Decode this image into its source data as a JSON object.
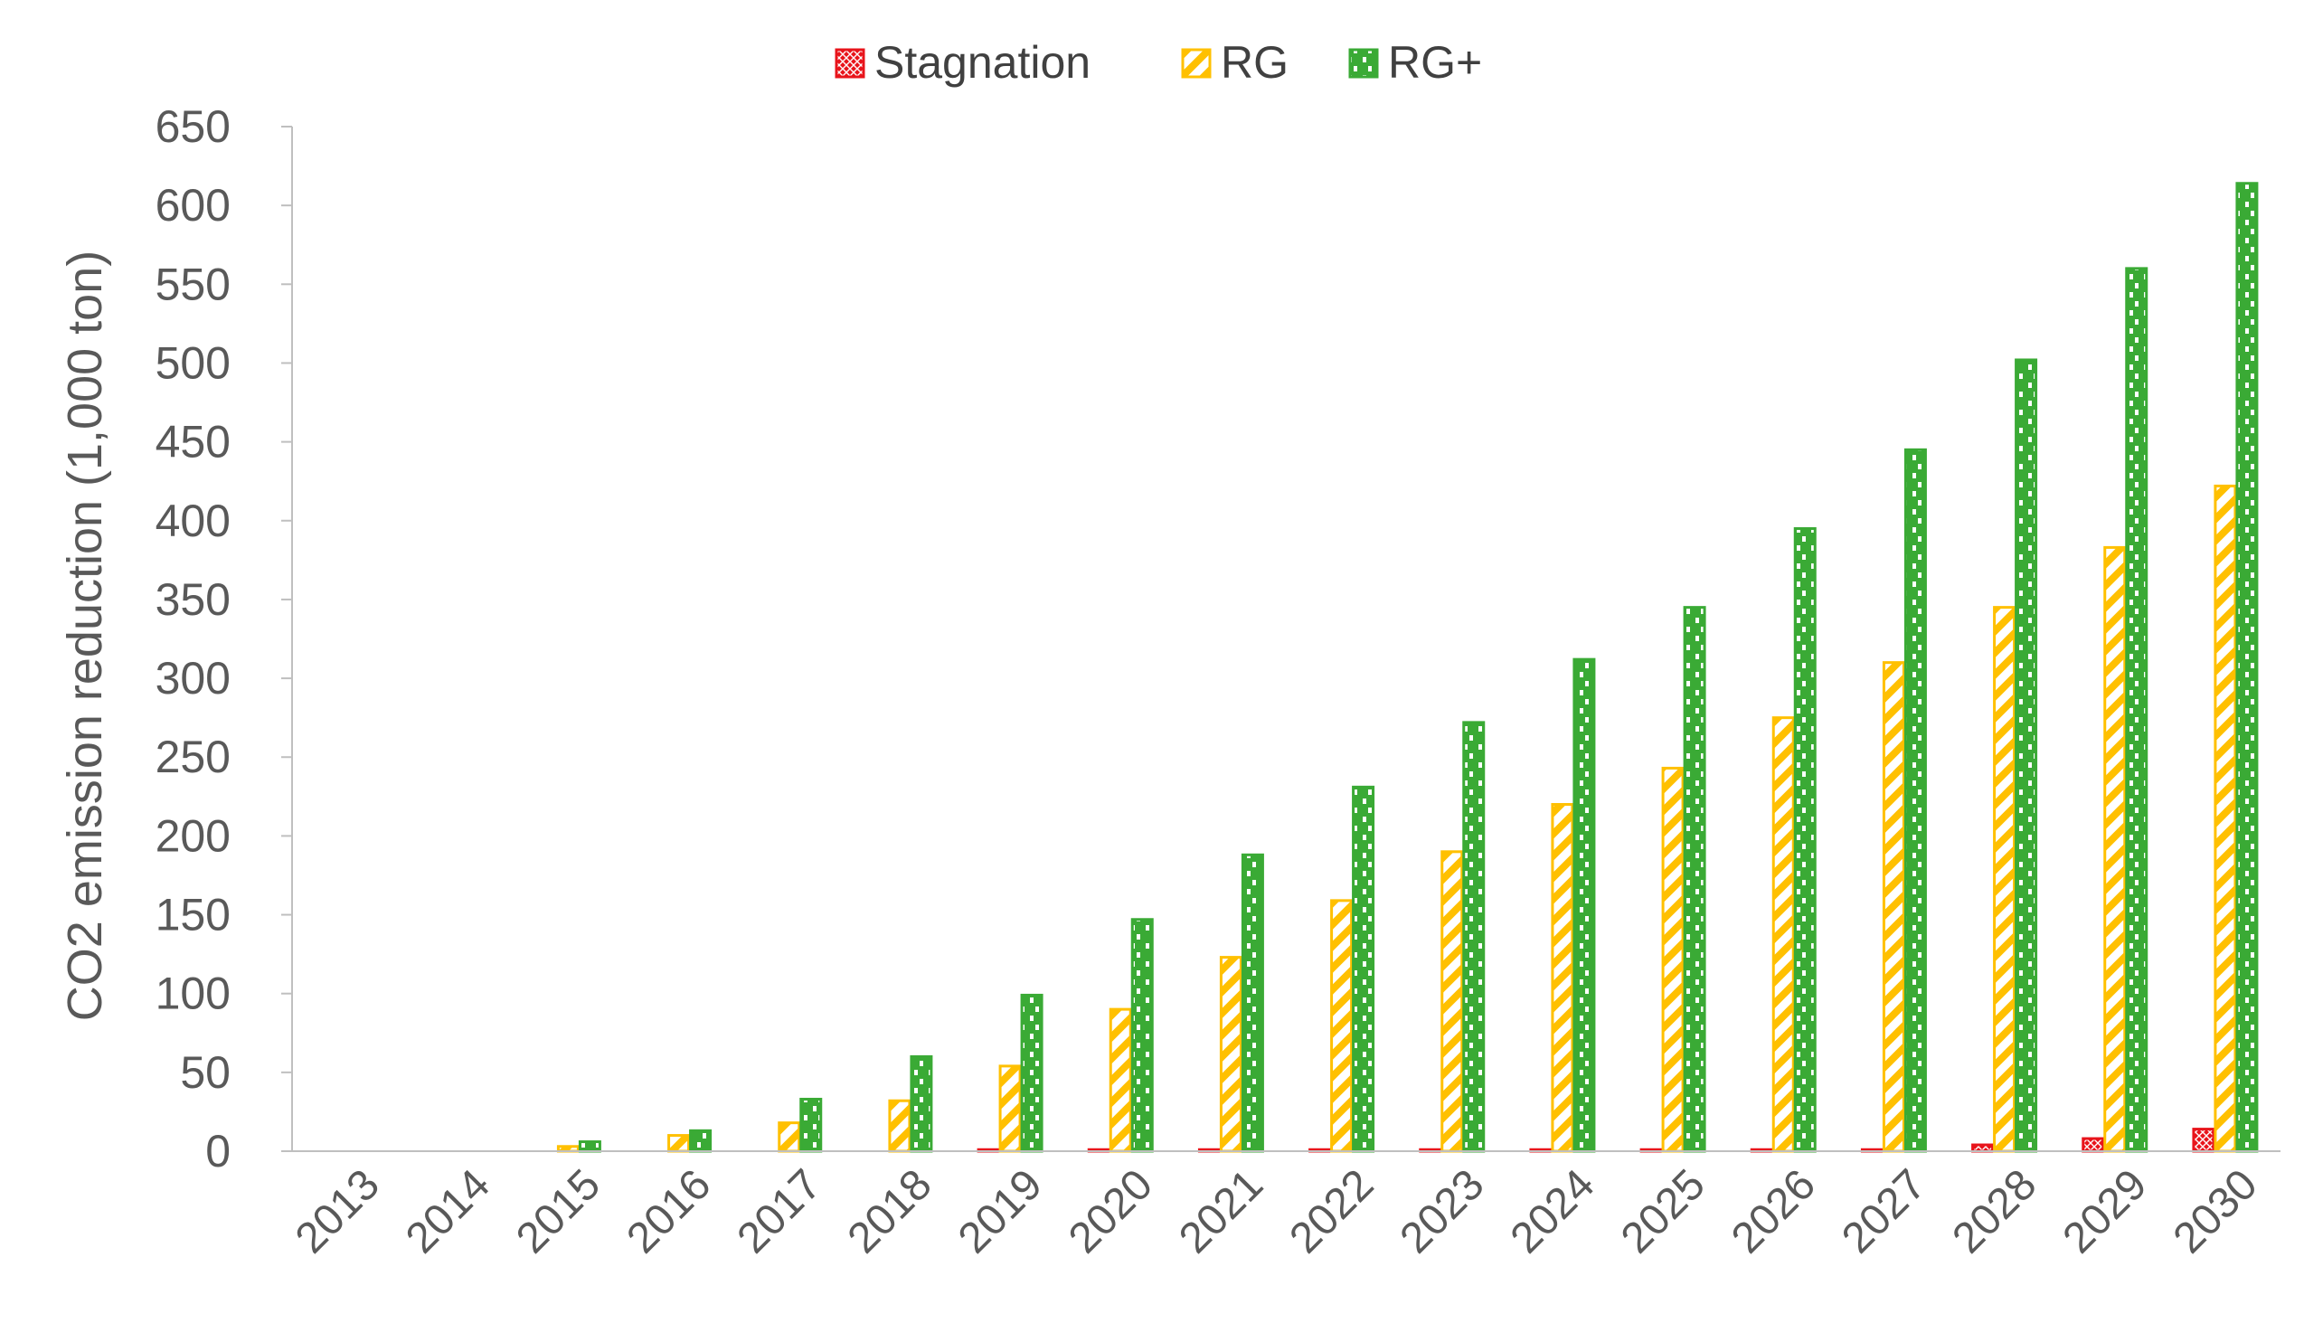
{
  "chart_data": {
    "type": "bar",
    "title": "",
    "xlabel": "",
    "ylabel": "CO2 emission reduction (1,000 ton)",
    "ylim": [
      0,
      650
    ],
    "yticks": [
      0,
      50,
      100,
      150,
      200,
      250,
      300,
      350,
      400,
      450,
      500,
      550,
      600,
      650
    ],
    "grid": false,
    "legend_position": "top",
    "categories": [
      "2013",
      "2014",
      "2015",
      "2016",
      "2017",
      "2018",
      "2019",
      "2020",
      "2021",
      "2022",
      "2023",
      "2024",
      "2025",
      "2026",
      "2027",
      "2028",
      "2029",
      "2030"
    ],
    "series": [
      {
        "name": "Stagnation",
        "color": "#e8141b",
        "pattern": "cross",
        "values": [
          0,
          0,
          0,
          0,
          0,
          0,
          1,
          1,
          1,
          1,
          1,
          1,
          1,
          1,
          1,
          4,
          8,
          14
        ]
      },
      {
        "name": "RG",
        "color": "#ffc000",
        "pattern": "diagonal",
        "values": [
          0,
          0,
          3,
          10,
          18,
          32,
          54,
          90,
          123,
          159,
          190,
          220,
          243,
          275,
          310,
          345,
          383,
          422
        ]
      },
      {
        "name": "RG+",
        "color": "#3aaa35",
        "pattern": "checker",
        "values": [
          0,
          0,
          6,
          13,
          33,
          60,
          99,
          147,
          188,
          231,
          272,
          312,
          345,
          395,
          445,
          502,
          560,
          614
        ]
      }
    ]
  }
}
